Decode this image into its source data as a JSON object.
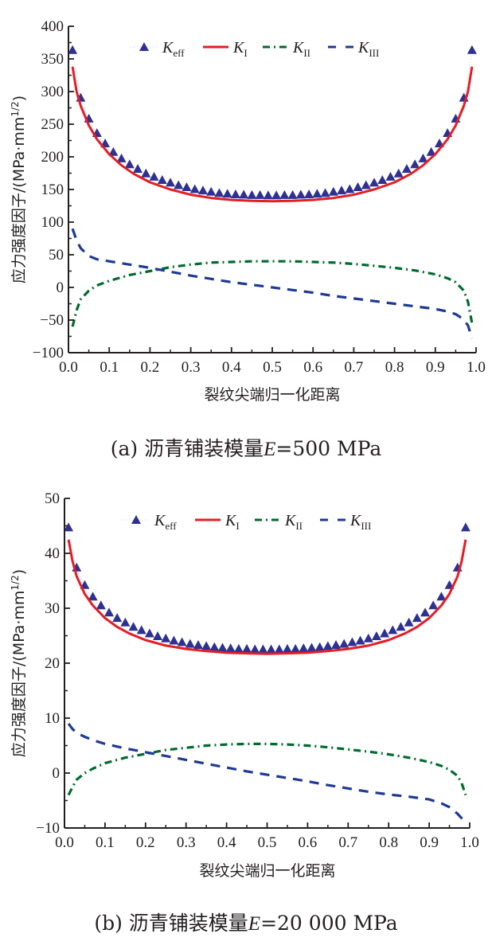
{
  "figure": {
    "panels": [
      "a",
      "b"
    ]
  },
  "chart_data": [
    {
      "type": "line",
      "id": "a",
      "caption_prefix": "(a) 沥青铺装模量",
      "caption_var": "E",
      "caption_value": "=500 MPa",
      "xlabel": "裂纹尖端归一化距离",
      "ylabel": "应力强度因子/(MPa·mm",
      "ylabel_sup": "1/2",
      "ylabel_end": ")",
      "xlim": [
        0.0,
        1.0
      ],
      "ylim": [
        -100,
        400
      ],
      "xticks": [
        "0.0",
        "0.1",
        "0.2",
        "0.3",
        "0.4",
        "0.5",
        "0.6",
        "0.7",
        "0.8",
        "0.9",
        "1.0"
      ],
      "yticks": [
        "-100",
        "-50",
        "0",
        "50",
        "100",
        "150",
        "200",
        "250",
        "300",
        "350",
        "400"
      ],
      "ytick_values": [
        -100,
        -50,
        0,
        50,
        100,
        150,
        200,
        250,
        300,
        350,
        400
      ],
      "legend_position": "top",
      "grid": false,
      "series": [
        {
          "name": "K_eff",
          "label_main": "K",
          "label_sub": "eff",
          "style": "triangle-markers",
          "color": "#2e3192",
          "x": [
            0.01,
            0.03,
            0.05,
            0.07,
            0.09,
            0.11,
            0.13,
            0.15,
            0.17,
            0.19,
            0.21,
            0.23,
            0.25,
            0.27,
            0.29,
            0.31,
            0.33,
            0.35,
            0.37,
            0.39,
            0.41,
            0.43,
            0.45,
            0.47,
            0.49,
            0.51,
            0.53,
            0.55,
            0.57,
            0.59,
            0.61,
            0.63,
            0.65,
            0.67,
            0.69,
            0.71,
            0.73,
            0.75,
            0.77,
            0.79,
            0.81,
            0.83,
            0.85,
            0.87,
            0.89,
            0.91,
            0.93,
            0.95,
            0.97,
            0.99
          ],
          "y": [
            360,
            287,
            255,
            233,
            217,
            204,
            194,
            185,
            178,
            171,
            166,
            161,
            157,
            153,
            150,
            147,
            145,
            143,
            141,
            140,
            139,
            138.5,
            138,
            138,
            137.5,
            137.5,
            138,
            138,
            138.5,
            139,
            140,
            141,
            143,
            145,
            147,
            150,
            153,
            157,
            161,
            166,
            171,
            178,
            185,
            194,
            204,
            217,
            233,
            255,
            287,
            360
          ]
        },
        {
          "name": "K_I",
          "label_main": "K",
          "label_sub": "I",
          "style": "solid",
          "color": "#e31e24",
          "x": [
            0.01,
            0.02,
            0.03,
            0.05,
            0.07,
            0.1,
            0.13,
            0.16,
            0.2,
            0.25,
            0.3,
            0.35,
            0.4,
            0.45,
            0.5,
            0.55,
            0.6,
            0.65,
            0.7,
            0.75,
            0.8,
            0.84,
            0.87,
            0.9,
            0.93,
            0.95,
            0.97,
            0.98,
            0.99
          ],
          "y": [
            338,
            300,
            278,
            248,
            227,
            204,
            187,
            174,
            161,
            150,
            142,
            137,
            134,
            132.5,
            132,
            132.5,
            134,
            137,
            142,
            150,
            161,
            174,
            187,
            204,
            227,
            248,
            278,
            300,
            338
          ]
        },
        {
          "name": "K_II",
          "label_main": "K",
          "label_sub": "II",
          "style": "dash-dot",
          "color": "#006b2d",
          "x": [
            0.01,
            0.02,
            0.03,
            0.05,
            0.07,
            0.1,
            0.15,
            0.2,
            0.25,
            0.3,
            0.35,
            0.4,
            0.45,
            0.5,
            0.55,
            0.6,
            0.65,
            0.7,
            0.75,
            0.8,
            0.85,
            0.9,
            0.93,
            0.95,
            0.97,
            0.98,
            0.99
          ],
          "y": [
            -60,
            -35,
            -18,
            -5,
            3,
            10,
            19,
            25,
            31,
            35,
            38,
            39,
            40,
            40,
            40,
            39,
            38,
            36,
            33,
            30,
            26,
            20,
            14,
            8,
            -5,
            -22,
            -55
          ]
        },
        {
          "name": "K_III",
          "label_main": "K",
          "label_sub": "III",
          "style": "dashed",
          "color": "#1f3a93",
          "x": [
            0.01,
            0.02,
            0.03,
            0.05,
            0.07,
            0.1,
            0.15,
            0.2,
            0.25,
            0.3,
            0.35,
            0.4,
            0.45,
            0.5,
            0.55,
            0.6,
            0.65,
            0.7,
            0.75,
            0.8,
            0.85,
            0.9,
            0.93,
            0.95,
            0.96,
            0.97,
            0.98,
            0.99
          ],
          "y": [
            90,
            72,
            60,
            48,
            43,
            40,
            35,
            30,
            24,
            18,
            13,
            8,
            4,
            0,
            -4,
            -8,
            -13,
            -17,
            -21,
            -25,
            -29,
            -33,
            -37,
            -41,
            -45,
            -50,
            -58,
            -78
          ]
        }
      ]
    },
    {
      "type": "line",
      "id": "b",
      "caption_prefix": "(b) 沥青铺装模量",
      "caption_var": "E",
      "caption_value": "=20 000 MPa",
      "xlabel": "裂纹尖端归一化距离",
      "ylabel": "应力强度因子/(MPa·mm",
      "ylabel_sup": "1/2",
      "ylabel_end": ")",
      "xlim": [
        0.0,
        1.0
      ],
      "ylim": [
        -10,
        50
      ],
      "xticks": [
        "0.0",
        "0.1",
        "0.2",
        "0.3",
        "0.4",
        "0.5",
        "0.6",
        "0.7",
        "0.8",
        "0.9",
        "1.0"
      ],
      "yticks": [
        "-10",
        "0",
        "10",
        "20",
        "30",
        "40",
        "50"
      ],
      "ytick_values": [
        -10,
        0,
        10,
        20,
        30,
        40,
        50
      ],
      "legend_position": "top",
      "grid": false,
      "series": [
        {
          "name": "K_eff",
          "label_main": "K",
          "label_sub": "eff",
          "style": "triangle-markers",
          "color": "#2e3192",
          "x": [
            0.01,
            0.03,
            0.05,
            0.07,
            0.09,
            0.11,
            0.13,
            0.15,
            0.17,
            0.19,
            0.21,
            0.23,
            0.25,
            0.27,
            0.29,
            0.31,
            0.33,
            0.35,
            0.37,
            0.39,
            0.41,
            0.43,
            0.45,
            0.47,
            0.49,
            0.51,
            0.53,
            0.55,
            0.57,
            0.59,
            0.61,
            0.63,
            0.65,
            0.67,
            0.69,
            0.71,
            0.73,
            0.75,
            0.77,
            0.79,
            0.81,
            0.83,
            0.85,
            0.87,
            0.89,
            0.91,
            0.93,
            0.95,
            0.97,
            0.99
          ],
          "y": [
            44.3,
            37.0,
            33.8,
            31.7,
            30.1,
            28.8,
            27.8,
            27.0,
            26.2,
            25.6,
            25.0,
            24.5,
            24.1,
            23.7,
            23.4,
            23.1,
            22.9,
            22.7,
            22.5,
            22.4,
            22.3,
            22.2,
            22.2,
            22.1,
            22.1,
            22.1,
            22.1,
            22.2,
            22.2,
            22.3,
            22.4,
            22.5,
            22.7,
            22.9,
            23.1,
            23.4,
            23.7,
            24.1,
            24.5,
            25.0,
            25.6,
            26.2,
            27.0,
            27.8,
            28.8,
            30.1,
            31.7,
            33.8,
            37.0,
            44.3
          ]
        },
        {
          "name": "K_I",
          "label_main": "K",
          "label_sub": "I",
          "style": "solid",
          "color": "#e31e24",
          "x": [
            0.01,
            0.02,
            0.03,
            0.05,
            0.07,
            0.1,
            0.13,
            0.16,
            0.2,
            0.25,
            0.3,
            0.35,
            0.4,
            0.45,
            0.5,
            0.55,
            0.6,
            0.65,
            0.7,
            0.75,
            0.8,
            0.84,
            0.87,
            0.9,
            0.93,
            0.95,
            0.97,
            0.98,
            0.99
          ],
          "y": [
            42.5,
            38.5,
            35.8,
            32.6,
            30.5,
            28.2,
            26.6,
            25.4,
            24.2,
            23.2,
            22.6,
            22.2,
            21.9,
            21.8,
            21.7,
            21.8,
            21.9,
            22.2,
            22.6,
            23.2,
            24.2,
            25.4,
            26.6,
            28.2,
            30.5,
            32.6,
            35.8,
            38.5,
            42.5
          ]
        },
        {
          "name": "K_II",
          "label_main": "K",
          "label_sub": "II",
          "style": "dash-dot",
          "color": "#006b2d",
          "x": [
            0.01,
            0.02,
            0.03,
            0.05,
            0.07,
            0.1,
            0.15,
            0.2,
            0.25,
            0.3,
            0.35,
            0.4,
            0.45,
            0.5,
            0.55,
            0.6,
            0.65,
            0.7,
            0.75,
            0.8,
            0.85,
            0.9,
            0.93,
            0.95,
            0.97,
            0.98,
            0.99
          ],
          "y": [
            -4.0,
            -2.5,
            -1.2,
            0.0,
            0.8,
            1.8,
            2.8,
            3.5,
            4.2,
            4.6,
            5.0,
            5.2,
            5.3,
            5.3,
            5.2,
            5.0,
            4.7,
            4.3,
            3.9,
            3.4,
            2.8,
            2.0,
            1.3,
            0.6,
            -0.5,
            -1.8,
            -4.0
          ]
        },
        {
          "name": "K_III",
          "label_main": "K",
          "label_sub": "III",
          "style": "dashed",
          "color": "#1f3a93",
          "x": [
            0.01,
            0.02,
            0.03,
            0.05,
            0.07,
            0.1,
            0.15,
            0.2,
            0.25,
            0.3,
            0.35,
            0.4,
            0.45,
            0.5,
            0.55,
            0.6,
            0.65,
            0.7,
            0.75,
            0.8,
            0.85,
            0.9,
            0.93,
            0.95,
            0.96,
            0.97,
            0.98,
            0.99
          ],
          "y": [
            9.0,
            8.0,
            7.3,
            6.6,
            6.0,
            5.3,
            4.5,
            3.8,
            3.1,
            2.4,
            1.7,
            1.0,
            0.3,
            -0.3,
            -0.9,
            -1.5,
            -2.2,
            -2.8,
            -3.4,
            -3.9,
            -4.3,
            -4.8,
            -5.5,
            -6.2,
            -6.8,
            -7.4,
            -8.2,
            -9.2
          ]
        }
      ]
    }
  ]
}
